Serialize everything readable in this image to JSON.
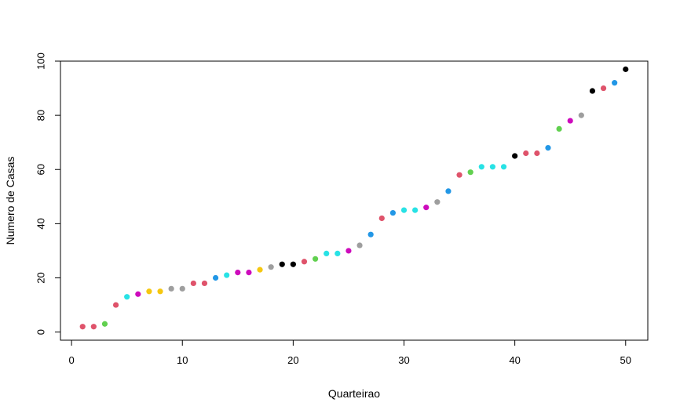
{
  "chart_data": {
    "type": "scatter",
    "title": "",
    "xlabel": "Quarteirao",
    "ylabel": "Numero de Casas",
    "xlim": [
      -1,
      52
    ],
    "ylim": [
      -3,
      100
    ],
    "xticks": [
      0,
      10,
      20,
      30,
      40,
      50
    ],
    "yticks": [
      0,
      20,
      40,
      60,
      80,
      100
    ],
    "grid": false,
    "legend": "none",
    "palette": {
      "black": "#000000",
      "red": "#df536b",
      "green": "#61d04f",
      "blue": "#2297e6",
      "cyan": "#28e2e5",
      "magenta": "#cd0bbc",
      "yellow": "#f5c710",
      "gray": "#9e9e9e"
    },
    "x": [
      1,
      2,
      3,
      4,
      5,
      6,
      7,
      8,
      9,
      10,
      11,
      12,
      13,
      14,
      15,
      16,
      17,
      18,
      19,
      20,
      21,
      22,
      23,
      24,
      25,
      26,
      27,
      28,
      29,
      30,
      31,
      32,
      33,
      34,
      35,
      36,
      37,
      38,
      39,
      40,
      41,
      42,
      43,
      44,
      45,
      46,
      47,
      48,
      49,
      50
    ],
    "y": [
      2,
      2,
      3,
      10,
      13,
      14,
      15,
      15,
      16,
      16,
      18,
      18,
      20,
      21,
      22,
      22,
      23,
      24,
      25,
      25,
      26,
      27,
      29,
      29,
      30,
      32,
      36,
      42,
      44,
      45,
      45,
      46,
      48,
      52,
      58,
      59,
      61,
      61,
      61,
      65,
      66,
      66,
      68,
      75,
      78,
      80,
      89,
      90,
      92,
      97
    ],
    "colors": [
      "red",
      "red",
      "green",
      "red",
      "cyan",
      "magenta",
      "yellow",
      "yellow",
      "gray",
      "gray",
      "red",
      "red",
      "blue",
      "cyan",
      "magenta",
      "magenta",
      "yellow",
      "gray",
      "black",
      "black",
      "red",
      "green",
      "cyan",
      "cyan",
      "magenta",
      "gray",
      "blue",
      "red",
      "blue",
      "cyan",
      "cyan",
      "magenta",
      "gray",
      "blue",
      "red",
      "green",
      "cyan",
      "cyan",
      "cyan",
      "black",
      "red",
      "red",
      "blue",
      "green",
      "magenta",
      "gray",
      "black",
      "red",
      "blue",
      "black"
    ]
  }
}
